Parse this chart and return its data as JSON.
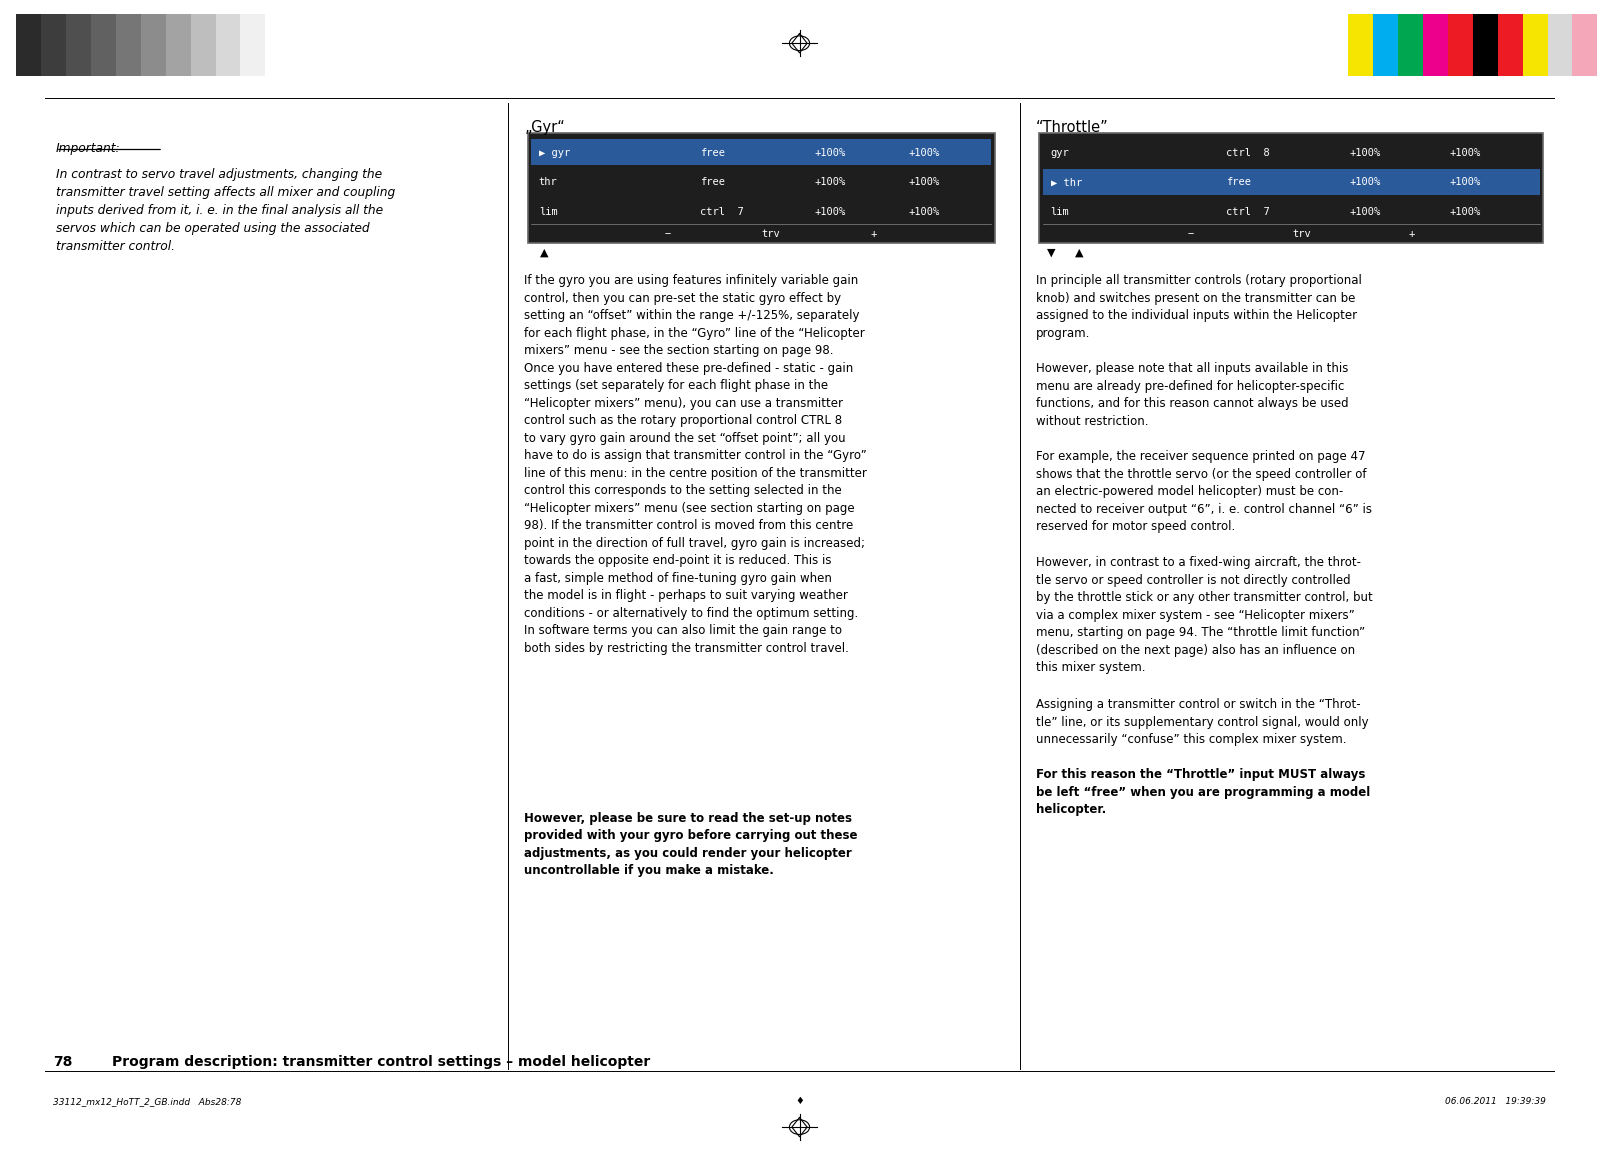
{
  "page_number": "78",
  "page_footer_left": "33112_mx12_HoTT_2_GB.indd   Abs28:78",
  "page_footer_right": "06.06.2011   19:39:39",
  "page_header_title": "Program description: transmitter control settings – model helicopter",
  "bg_color": "#ffffff",
  "gray_bars": [
    "#2b2b2b",
    "#3d3d3d",
    "#4f4f4f",
    "#616161",
    "#767676",
    "#8c8c8c",
    "#a3a3a3",
    "#bebebe",
    "#d8d8d8",
    "#f0f0f0"
  ],
  "color_bars": [
    "#f5e500",
    "#00aeef",
    "#00a650",
    "#ec008c",
    "#ed1c24",
    "#000000",
    "#ed1c24",
    "#f5e500",
    "#d8d8d8",
    "#f4a7b9"
  ],
  "left_heading": "Important:",
  "left_body": "In contrast to servo travel adjustments, changing the\ntransmitter travel setting affects all mixer and coupling\ninputs derived from it, i. e. in the final analysis all the\nservos which can be operated using the associated\ntransmitter control.",
  "gyr_title": "„Gyr“",
  "gyr_row_labels": [
    "▶ gyr",
    "thr",
    "lim"
  ],
  "gyr_row_ctrls": [
    "free",
    "free",
    "ctrl  7"
  ],
  "gyr_selected_row": 0,
  "throttle_title": "“Throttle”",
  "throttle_row_labels": [
    "gyr",
    "▶ thr",
    "lim"
  ],
  "throttle_row_ctrls": [
    "ctrl  8",
    "free",
    "ctrl  7"
  ],
  "throttle_selected_row": 1,
  "gyr_body1": "If the gyro you are using features infinitely variable gain\ncontrol, then you can pre-set the static gyro effect by\nsetting an “offset” within the range +/-125%, separately\nfor each flight phase, in the “Gyro” line of the “Helicopter\nmixers” menu - see the section starting on page 98.\nOnce you have entered these pre-defined - static - gain\nsettings (set separately for each flight phase in the\n“Helicopter mixers” menu), you can use a transmitter\ncontrol such as the rotary proportional control CTRL 8\nto vary gyro gain around the set “offset point”; all you\nhave to do is assign that transmitter control in the “Gyro”\nline of this menu: in the centre position of the transmitter\ncontrol this corresponds to the setting selected in the\n“Helicopter mixers” menu (see section starting on page\n98). If the transmitter control is moved from this centre\npoint in the direction of full travel, gyro gain is increased;\ntowards the opposite end-point it is reduced. This is\na fast, simple method of fine-tuning gyro gain when\nthe model is in flight - perhaps to suit varying weather\nconditions - or alternatively to find the optimum setting.\nIn software terms you can also limit the gain range to\nboth sides by restricting the transmitter control travel.",
  "gyr_body_bold": "However, please be sure to read the set-up notes\nprovided with your gyro before carrying out these\nadjustments, as you could render your helicopter\nuncontrollable if you make a mistake.",
  "thr_para1": "In principle all transmitter controls (rotary proportional\nknob) and switches present on the transmitter can be\nassigned to the individual inputs within the Helicopter\nprogram.",
  "thr_para2": "However, please note that all inputs available in this\nmenu are already pre-defined for helicopter-specific\nfunctions, and for this reason cannot always be used\nwithout restriction.",
  "thr_para3": "For example, the receiver sequence printed on page 47\nshows that the throttle servo (or the speed controller of\nan electric-powered model helicopter) must be con-\nnected to receiver output “6”, i. e. control channel “6” is\nreserved for motor speed control.",
  "thr_para4": "However, in contrast to a fixed-wing aircraft, the throt-\ntle servo or speed controller is not directly controlled\nby the throttle stick or any other transmitter control, but\nvia a complex mixer system - see “Helicopter mixers”\nmenu, starting on page 94. The “throttle limit function”\n(described on the next page) also has an influence on\nthis mixer system.",
  "thr_para5": "Assigning a transmitter control or switch in the “Throt-\ntle” line, or its supplementary control signal, would only\nunnecessarily “confuse” this complex mixer system.",
  "thr_bold": "For this reason the “Throttle” input MUST always\nbe left “free” when you are programming a model\nhelicopter."
}
